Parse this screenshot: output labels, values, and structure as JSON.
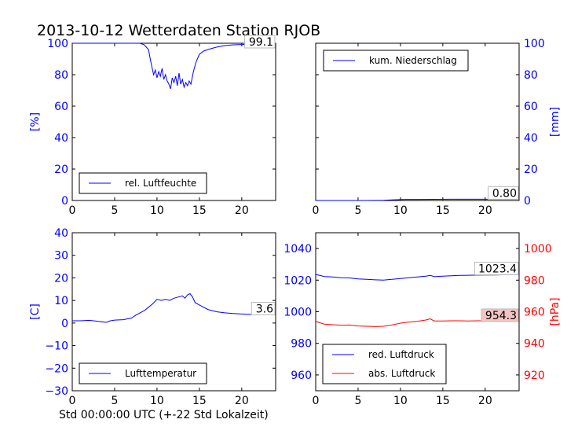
{
  "title": "2013-10-12 Wetterdaten Station RJOB",
  "xlabel": "Std 00:00:00 UTC (+-22 Std Lokalzeit)",
  "colors": {
    "blue": "#0000ff",
    "red": "#ff0000",
    "black": "#000000"
  },
  "chart_data": [
    {
      "type": "line",
      "name": "humidity",
      "xlim": [
        0,
        24
      ],
      "ylim": [
        0,
        100
      ],
      "xticks": [
        0,
        5,
        10,
        15,
        20
      ],
      "yticks": [
        0,
        20,
        40,
        60,
        80,
        100
      ],
      "ylabel": "[%]",
      "ylabel_side": "left",
      "ylabel_color": "#0000ff",
      "legend_position": "bottom-left",
      "last_value_label": "99.1",
      "series": [
        {
          "name": "rel. Luftfeuchte",
          "color": "#0000ff",
          "x": [
            0,
            1,
            2,
            3,
            4,
            5,
            6,
            7,
            8,
            8.5,
            9,
            9.2,
            9.4,
            9.6,
            9.8,
            10,
            10.2,
            10.4,
            10.6,
            10.8,
            11,
            11.2,
            11.4,
            11.6,
            11.8,
            12,
            12.2,
            12.4,
            12.6,
            12.8,
            13,
            13.2,
            13.4,
            13.6,
            13.8,
            14,
            14.3,
            14.6,
            15,
            15.5,
            16,
            17,
            18,
            19,
            20,
            21,
            22,
            23,
            24
          ],
          "y": [
            100,
            100,
            100,
            100,
            100,
            100,
            100,
            100,
            100,
            99,
            96,
            90,
            85,
            80,
            83,
            78,
            82,
            79,
            84,
            77,
            80,
            76,
            74,
            71,
            78,
            75,
            79,
            73,
            81,
            74,
            77,
            72,
            75,
            73,
            76,
            74,
            82,
            88,
            93,
            95,
            96,
            97.5,
            98.5,
            99,
            99.2,
            99.3,
            99.2,
            99.1,
            99.1
          ]
        }
      ]
    },
    {
      "type": "line",
      "name": "precipitation",
      "xlim": [
        0,
        24
      ],
      "ylim": [
        0,
        100
      ],
      "xticks": [
        0,
        5,
        10,
        15,
        20
      ],
      "yticks": [
        0,
        20,
        40,
        60,
        80,
        100
      ],
      "ylabel": "[mm]",
      "ylabel_side": "right",
      "ylabel_color": "#0000ff",
      "legend_position": "top-left",
      "last_value_label": "0.80",
      "series": [
        {
          "name": "kum. Niederschlag",
          "color": "#0000ff",
          "x": [
            0,
            2,
            4,
            6,
            8,
            9,
            10,
            11,
            12,
            14,
            16,
            18,
            20,
            22,
            24
          ],
          "y": [
            0,
            0,
            0,
            0,
            0.1,
            0.4,
            0.6,
            0.7,
            0.7,
            0.75,
            0.78,
            0.8,
            0.8,
            0.8,
            0.8
          ]
        }
      ]
    },
    {
      "type": "line",
      "name": "temperature",
      "xlim": [
        0,
        24
      ],
      "ylim": [
        -30,
        40
      ],
      "xticks": [
        0,
        5,
        10,
        15,
        20
      ],
      "yticks": [
        -30,
        -20,
        -10,
        0,
        10,
        20,
        30,
        40
      ],
      "ylabel": "[C]",
      "ylabel_side": "left",
      "ylabel_color": "#0000ff",
      "legend_position": "bottom-left",
      "last_value_label": "3.6",
      "series": [
        {
          "name": "Lufttemperatur",
          "color": "#0000ff",
          "x": [
            0,
            1,
            2,
            3,
            4,
            4.5,
            5,
            6,
            7,
            7.5,
            8,
            8.5,
            9,
            9.5,
            10,
            10.5,
            11,
            11.5,
            12,
            12.5,
            13,
            13.3,
            13.6,
            13.9,
            14.2,
            14.5,
            15,
            15.5,
            16,
            17,
            18,
            19,
            20,
            21,
            22,
            23,
            24
          ],
          "y": [
            1,
            1,
            1.2,
            0.8,
            0.3,
            1,
            1.3,
            1.5,
            2.2,
            3.5,
            4.5,
            5.5,
            7,
            8.5,
            10.5,
            10,
            10.5,
            10,
            11,
            11.5,
            12,
            11,
            12.5,
            13,
            11.5,
            9,
            8,
            7,
            6,
            5,
            4.5,
            4.2,
            4,
            3.8,
            3.7,
            3.6,
            3.6
          ]
        }
      ]
    },
    {
      "type": "line",
      "name": "pressure",
      "xlim": [
        0,
        24
      ],
      "ylim": [
        950,
        1050
      ],
      "ylim_right": [
        910,
        1010
      ],
      "xticks": [
        0,
        5,
        10,
        15,
        20
      ],
      "yticks": [
        960,
        980,
        1000,
        1020,
        1040
      ],
      "yticks_right": [
        920,
        940,
        960,
        980,
        1000
      ],
      "ylabel": "[hPa]",
      "ylabel_side": "right",
      "ylabel_color": "#ff0000",
      "left_tick_color": "#0000ff",
      "right_tick_color": "#ff0000",
      "legend_position": "bottom-left",
      "last_value_label_1": "1023.4",
      "last_value_label_2": "954.3",
      "series": [
        {
          "name": "red. Luftdruck",
          "color": "#0000ff",
          "axis": "left",
          "x": [
            0,
            0.5,
            1,
            2,
            3,
            4,
            5,
            6,
            7,
            8,
            9,
            10,
            11,
            12,
            13,
            13.5,
            14,
            15,
            16,
            17,
            18,
            19,
            20,
            21,
            22,
            23,
            24
          ],
          "y": [
            1023.5,
            1023,
            1022.3,
            1022,
            1021.5,
            1021.4,
            1020.8,
            1020.5,
            1020.2,
            1020,
            1020.5,
            1021,
            1021.5,
            1022,
            1022.5,
            1023,
            1022.2,
            1022.5,
            1022.8,
            1023,
            1023.1,
            1023.2,
            1023.3,
            1023.3,
            1023.4,
            1023.4,
            1023.4
          ]
        },
        {
          "name": "abs. Luftdruck",
          "color": "#ff0000",
          "axis": "right",
          "x": [
            0,
            0.5,
            1,
            2,
            3,
            4,
            5,
            6,
            7,
            8,
            9,
            10,
            11,
            12,
            13,
            13.5,
            14,
            15,
            16,
            17,
            18,
            19,
            20,
            21,
            22,
            23,
            24
          ],
          "y": [
            954,
            953,
            952.2,
            951.8,
            951.5,
            951.6,
            951,
            950.8,
            950.6,
            950.8,
            951.6,
            952.8,
            953.5,
            954,
            954.8,
            955.5,
            954.2,
            954.2,
            954.3,
            954.3,
            954.2,
            954.3,
            954.3,
            954.4,
            954.3,
            954.3,
            954.3
          ]
        }
      ]
    }
  ]
}
